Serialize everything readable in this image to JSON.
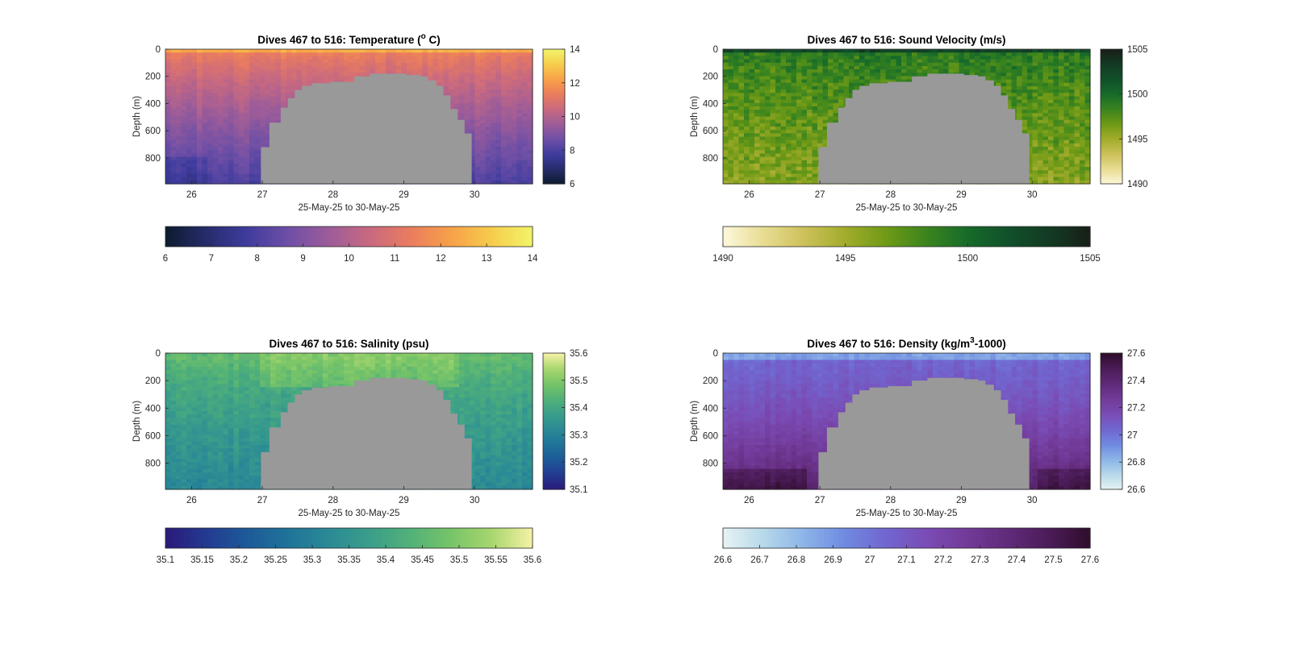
{
  "chart_data": [
    {
      "type": "heatmap",
      "title": "Dives 467 to 516: Temperature (",
      "title_super": "o",
      "title_end": " C)",
      "xlabel": "25-May-25 to 30-May-25",
      "ylabel": "Depth (m)",
      "x_ticks": [
        "26",
        "27",
        "28",
        "29",
        "30"
      ],
      "xlim": [
        25.63,
        30.82
      ],
      "y_ticks": [
        "0",
        "200",
        "400",
        "600",
        "800"
      ],
      "ylim": [
        0,
        990
      ],
      "depth_profile": [
        [
          25.63,
          990
        ],
        [
          26.98,
          990
        ],
        [
          26.98,
          720
        ],
        [
          27.1,
          720
        ],
        [
          27.1,
          540
        ],
        [
          27.26,
          540
        ],
        [
          27.26,
          430
        ],
        [
          27.36,
          430
        ],
        [
          27.36,
          360
        ],
        [
          27.46,
          360
        ],
        [
          27.46,
          300
        ],
        [
          27.56,
          300
        ],
        [
          27.56,
          270
        ],
        [
          27.7,
          270
        ],
        [
          27.7,
          250
        ],
        [
          27.96,
          250
        ],
        [
          27.96,
          240
        ],
        [
          28.3,
          240
        ],
        [
          28.3,
          200
        ],
        [
          28.52,
          200
        ],
        [
          28.52,
          180
        ],
        [
          29.04,
          180
        ],
        [
          29.04,
          190
        ],
        [
          29.24,
          190
        ],
        [
          29.24,
          200
        ],
        [
          29.34,
          200
        ],
        [
          29.34,
          230
        ],
        [
          29.46,
          230
        ],
        [
          29.46,
          270
        ],
        [
          29.56,
          270
        ],
        [
          29.56,
          340
        ],
        [
          29.66,
          340
        ],
        [
          29.66,
          440
        ],
        [
          29.76,
          440
        ],
        [
          29.76,
          520
        ],
        [
          29.86,
          520
        ],
        [
          29.86,
          620
        ],
        [
          29.96,
          620
        ],
        [
          29.96,
          990
        ],
        [
          30.82,
          990
        ]
      ],
      "colorbar": {
        "ticks": [
          "6",
          "8",
          "10",
          "12",
          "14"
        ],
        "range": [
          6,
          14
        ]
      },
      "horizontal_colorbar": {
        "ticks": [
          "6",
          "7",
          "8",
          "9",
          "10",
          "11",
          "12",
          "13",
          "14"
        ]
      },
      "colormap": [
        "#0d1b2e",
        "#262c6b",
        "#3f3c9e",
        "#6e4fa6",
        "#9c5c99",
        "#c86980",
        "#ea7c5e",
        "#f7a149",
        "#f6cc4c",
        "#f2f46a"
      ],
      "approx_values": {
        "surface": 12.0,
        "deep": 7.8
      }
    },
    {
      "type": "heatmap",
      "title": "Dives 467 to 516: Sound Velocity (m/s)",
      "xlabel": "25-May-25 to 30-May-25",
      "ylabel": "Depth (m)",
      "x_ticks": [
        "26",
        "27",
        "28",
        "29",
        "30"
      ],
      "xlim": [
        25.63,
        30.82
      ],
      "y_ticks": [
        "0",
        "200",
        "400",
        "600",
        "800"
      ],
      "ylim": [
        0,
        990
      ],
      "colorbar": {
        "ticks": [
          "1490",
          "1495",
          "1500",
          "1505"
        ],
        "range": [
          1490,
          1505
        ]
      },
      "horizontal_colorbar": {
        "ticks": [
          "1490",
          "1495",
          "1500",
          "1505"
        ]
      },
      "colormap": [
        "#fdf8dc",
        "#e8dc92",
        "#ccc15a",
        "#a2ac2c",
        "#6f9a16",
        "#3a841e",
        "#176b2a",
        "#11502a",
        "#133b24",
        "#181f18"
      ],
      "approx_values": {
        "surface": 1500.5,
        "deep": 1497.0
      }
    },
    {
      "type": "heatmap",
      "title": "Dives 467 to 516: Salinity (psu)",
      "xlabel": "25-May-25 to 30-May-25",
      "ylabel": "Depth (m)",
      "x_ticks": [
        "26",
        "27",
        "28",
        "29",
        "30"
      ],
      "xlim": [
        25.63,
        30.82
      ],
      "y_ticks": [
        "0",
        "200",
        "400",
        "600",
        "800"
      ],
      "ylim": [
        0,
        990
      ],
      "colorbar": {
        "ticks": [
          "35.1",
          "35.2",
          "35.3",
          "35.4",
          "35.5",
          "35.6"
        ],
        "range": [
          35.1,
          35.6
        ]
      },
      "horizontal_colorbar": {
        "ticks": [
          "35.1",
          "35.15",
          "35.2",
          "35.25",
          "35.3",
          "35.35",
          "35.4",
          "35.45",
          "35.5",
          "35.55",
          "35.6"
        ]
      },
      "colormap": [
        "#2a1a7a",
        "#233a90",
        "#1d5a98",
        "#1f7399",
        "#2a8a95",
        "#3a9e8a",
        "#52b178",
        "#77c468",
        "#a8d66e",
        "#f6f1a6"
      ],
      "approx_values": {
        "surface": 35.49,
        "deep": 35.3
      }
    },
    {
      "type": "heatmap",
      "title": "Dives 467 to 516: Density (kg/m",
      "title_super": "3",
      "title_end": "-1000)",
      "xlabel": "25-May-25 to 30-May-25",
      "ylabel": "Depth (m)",
      "x_ticks": [
        "26",
        "27",
        "28",
        "29",
        "30"
      ],
      "xlim": [
        25.63,
        30.82
      ],
      "y_ticks": [
        "0",
        "200",
        "400",
        "600",
        "800"
      ],
      "ylim": [
        0,
        990
      ],
      "colorbar": {
        "ticks": [
          "26.6",
          "26.8",
          "27",
          "27.2",
          "27.4",
          "27.6"
        ],
        "range": [
          26.6,
          27.6
        ]
      },
      "horizontal_colorbar": {
        "ticks": [
          "26.6",
          "26.7",
          "26.8",
          "26.9",
          "27",
          "27.1",
          "27.2",
          "27.3",
          "27.4",
          "27.5",
          "27.6"
        ]
      },
      "colormap": [
        "#e7f3f3",
        "#b6d8ea",
        "#8cb4e8",
        "#6f89e0",
        "#7166cf",
        "#7a4cb5",
        "#723a98",
        "#602a79",
        "#4b1c58",
        "#2f0d2c"
      ],
      "approx_values": {
        "surface": 26.95,
        "deep": 27.45
      }
    }
  ]
}
